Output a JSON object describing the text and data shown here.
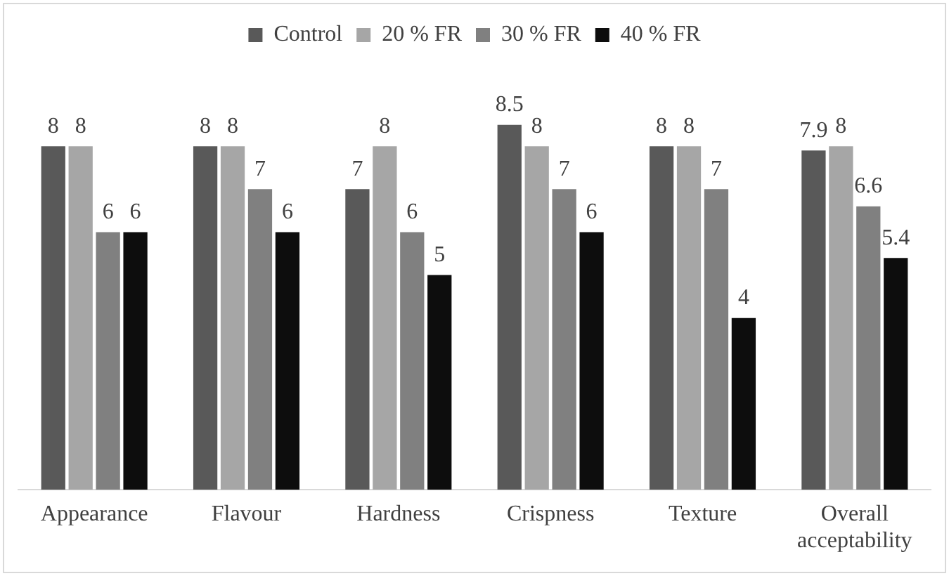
{
  "chart_data": {
    "type": "bar",
    "categories": [
      "Appearance",
      "Flavour",
      "Hardness",
      "Crispness",
      "Texture",
      "Overall acceptability"
    ],
    "series": [
      {
        "name": "Control",
        "color": "#595959",
        "values": [
          8,
          8,
          7,
          8.5,
          8,
          7.9
        ]
      },
      {
        "name": "20 % FR",
        "color": "#a6a6a6",
        "values": [
          8,
          8,
          8,
          8,
          8,
          8
        ]
      },
      {
        "name": "30 % FR",
        "color": "#808080",
        "values": [
          6,
          7,
          6,
          7,
          7,
          6.6
        ]
      },
      {
        "name": "40 % FR",
        "color": "#0d0d0d",
        "values": [
          6,
          6,
          5,
          6,
          4,
          5.4
        ]
      }
    ],
    "data_labels": true,
    "legend": "top",
    "grid": false
  }
}
